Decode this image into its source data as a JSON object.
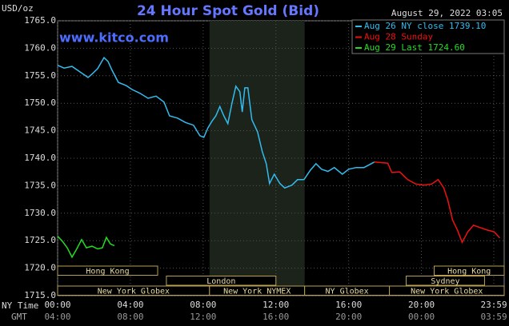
{
  "chart_data": {
    "type": "line",
    "title": "24 Hour Spot Gold (Bid)",
    "website": "www.kitco.com",
    "y_unit": "USD/oz",
    "timestamp": "August 29, 2022 03:05",
    "x_axis_label": "NY Time",
    "x2_axis_label": "GMT",
    "xlim": [
      0,
      24.55
    ],
    "xticks": [
      {
        "value": 0,
        "label": "00:00"
      },
      {
        "value": 4,
        "label": "04:00"
      },
      {
        "value": 8,
        "label": "08:00"
      },
      {
        "value": 12,
        "label": "12:00"
      },
      {
        "value": 16,
        "label": "16:00"
      },
      {
        "value": 20,
        "label": "20:00"
      },
      {
        "value": 23.98,
        "label": "23:59"
      }
    ],
    "gmt_labels": [
      "04:00",
      "08:00",
      "12:00",
      "16:00",
      "20:00",
      "00:00",
      "03:59"
    ],
    "ylim": [
      1715,
      1765
    ],
    "yticks": [
      {
        "value": 1715,
        "label": "1715.0"
      },
      {
        "value": 1720,
        "label": "1720.0"
      },
      {
        "value": 1725,
        "label": "1725.0"
      },
      {
        "value": 1730,
        "label": "1730.0"
      },
      {
        "value": 1735,
        "label": "1735.0"
      },
      {
        "value": 1740,
        "label": "1740.0"
      },
      {
        "value": 1745,
        "label": "1745.0"
      },
      {
        "value": 1750,
        "label": "1750.0"
      },
      {
        "value": 1755,
        "label": "1755.0"
      },
      {
        "value": 1760,
        "label": "1760.0"
      },
      {
        "value": 1765,
        "label": "1765.0"
      }
    ],
    "grid": true,
    "shade": [
      8.35,
      13.58
    ],
    "sessions": [
      {
        "label": "Hong Kong",
        "start": 0,
        "end": 5.5,
        "row": 0
      },
      {
        "label": "London",
        "start": 5.98,
        "end": 12.0,
        "row": 1
      },
      {
        "label": "New York Globex",
        "start": 0,
        "end": 8.35,
        "row": 2
      },
      {
        "label": "New York NYMEX",
        "start": 8.35,
        "end": 13.58,
        "row": 2
      },
      {
        "label": "NY Globex",
        "start": 13.58,
        "end": 18.24,
        "row": 2
      },
      {
        "label": "Hong Kong",
        "start": 20.7,
        "end": 24.55,
        "row": 0
      },
      {
        "label": "Sydney",
        "start": 19.16,
        "end": 23.47,
        "row": 1
      },
      {
        "label": "New York Globex",
        "start": 18.24,
        "end": 24.55,
        "row": 2
      }
    ],
    "series": [
      {
        "name": "Aug 26 NY close 1739.10",
        "color": "#33bbee",
        "x": [
          0,
          0.35,
          0.79,
          1.23,
          1.67,
          1.89,
          2.2,
          2.55,
          2.77,
          2.99,
          3.34,
          3.78,
          4.09,
          4.53,
          4.97,
          5.41,
          5.85,
          6.15,
          6.59,
          7.03,
          7.47,
          7.82,
          8.04,
          8.26,
          8.48,
          8.7,
          8.92,
          9.14,
          9.36,
          9.58,
          9.8,
          10.02,
          10.15,
          10.29,
          10.46,
          10.68,
          10.99,
          11.25,
          11.47,
          11.65,
          11.91,
          12.22,
          12.48,
          12.88,
          13.19,
          13.54,
          13.89,
          14.2,
          14.51,
          14.86,
          15.21,
          15.65,
          16.0,
          16.4,
          16.84,
          17.41
        ],
        "values": [
          1756.9,
          1756.4,
          1756.7,
          1755.7,
          1754.7,
          1755.3,
          1756.3,
          1758.3,
          1757.6,
          1756.0,
          1753.8,
          1753.2,
          1752.5,
          1751.8,
          1750.9,
          1751.3,
          1750.2,
          1747.7,
          1747.3,
          1746.5,
          1746.0,
          1744.1,
          1743.8,
          1745.5,
          1746.7,
          1747.7,
          1749.4,
          1747.7,
          1746.3,
          1749.9,
          1753.1,
          1752.1,
          1748.4,
          1752.8,
          1752.8,
          1747.0,
          1744.8,
          1741.2,
          1739.0,
          1735.4,
          1737.1,
          1735.4,
          1734.6,
          1735.1,
          1736.1,
          1736.1,
          1737.8,
          1739.0,
          1738.0,
          1737.6,
          1738.3,
          1737.1,
          1738.0,
          1738.3,
          1738.3,
          1739.3
        ]
      },
      {
        "name": "Aug 28 Sunday",
        "color": "#ee1111",
        "x": [
          17.41,
          18.15,
          18.37,
          18.81,
          19.25,
          19.69,
          20.13,
          20.57,
          20.92,
          21.23,
          21.45,
          21.71,
          21.98,
          22.24,
          22.55,
          22.86,
          23.21,
          23.65,
          24.0,
          24.31
        ],
        "values": [
          1739.3,
          1739.1,
          1737.4,
          1737.5,
          1736.1,
          1735.3,
          1735.1,
          1735.3,
          1736.1,
          1734.6,
          1732.4,
          1728.8,
          1726.9,
          1724.7,
          1726.6,
          1727.8,
          1727.4,
          1726.9,
          1726.6,
          1725.5
        ]
      },
      {
        "name": "Aug 29 Last 1724.60",
        "color": "#22dd22",
        "x": [
          0,
          0.26,
          0.53,
          0.79,
          1.05,
          1.32,
          1.58,
          1.89,
          2.2,
          2.46,
          2.68,
          2.9,
          3.12
        ],
        "values": [
          1725.8,
          1724.9,
          1723.7,
          1722.0,
          1723.5,
          1725.2,
          1723.7,
          1724.0,
          1723.5,
          1723.7,
          1725.6,
          1724.4,
          1724.1
        ]
      }
    ]
  }
}
